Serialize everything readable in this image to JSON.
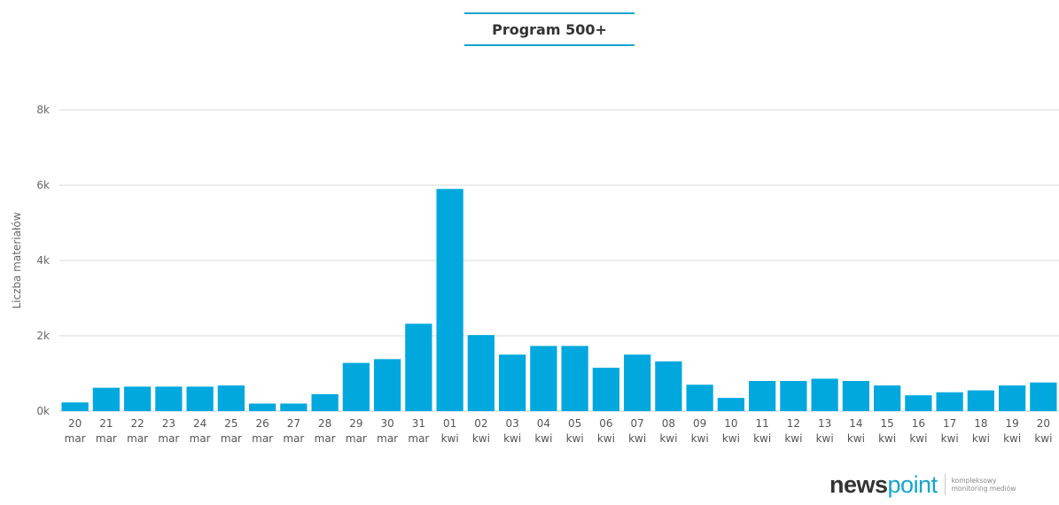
{
  "chart_data": {
    "type": "bar",
    "title": "Program 500+",
    "ylabel": "Liczba materiałów",
    "xlabel": "",
    "ylim": [
      0,
      8000
    ],
    "yticks": [
      0,
      2000,
      4000,
      6000,
      8000
    ],
    "ytick_labels": [
      "0k",
      "2k",
      "4k",
      "6k",
      "8k"
    ],
    "grid": true,
    "legend": "none",
    "bar_color": "#00a8de",
    "categories": [
      {
        "day": "20",
        "month": "mar"
      },
      {
        "day": "21",
        "month": "mar"
      },
      {
        "day": "22",
        "month": "mar"
      },
      {
        "day": "23",
        "month": "mar"
      },
      {
        "day": "24",
        "month": "mar"
      },
      {
        "day": "25",
        "month": "mar"
      },
      {
        "day": "26",
        "month": "mar"
      },
      {
        "day": "27",
        "month": "mar"
      },
      {
        "day": "28",
        "month": "mar"
      },
      {
        "day": "29",
        "month": "mar"
      },
      {
        "day": "30",
        "month": "mar"
      },
      {
        "day": "31",
        "month": "mar"
      },
      {
        "day": "01",
        "month": "kwi"
      },
      {
        "day": "02",
        "month": "kwi"
      },
      {
        "day": "03",
        "month": "kwi"
      },
      {
        "day": "04",
        "month": "kwi"
      },
      {
        "day": "05",
        "month": "kwi"
      },
      {
        "day": "06",
        "month": "kwi"
      },
      {
        "day": "07",
        "month": "kwi"
      },
      {
        "day": "08",
        "month": "kwi"
      },
      {
        "day": "09",
        "month": "kwi"
      },
      {
        "day": "10",
        "month": "kwi"
      },
      {
        "day": "11",
        "month": "kwi"
      },
      {
        "day": "12",
        "month": "kwi"
      },
      {
        "day": "13",
        "month": "kwi"
      },
      {
        "day": "14",
        "month": "kwi"
      },
      {
        "day": "15",
        "month": "kwi"
      },
      {
        "day": "16",
        "month": "kwi"
      },
      {
        "day": "17",
        "month": "kwi"
      },
      {
        "day": "18",
        "month": "kwi"
      },
      {
        "day": "19",
        "month": "kwi"
      },
      {
        "day": "20",
        "month": "kwi"
      }
    ],
    "values": [
      230,
      620,
      650,
      650,
      650,
      680,
      200,
      200,
      450,
      1280,
      1380,
      2320,
      5900,
      2020,
      1500,
      1730,
      1730,
      1150,
      1500,
      1320,
      700,
      350,
      800,
      800,
      860,
      800,
      680,
      420,
      500,
      550,
      680,
      760
    ]
  },
  "branding": {
    "logo_left": "news",
    "logo_right": "point",
    "tagline_1": "kompleksowy",
    "tagline_2": "monitoring mediów",
    "accent_color": "#14a5cc"
  }
}
